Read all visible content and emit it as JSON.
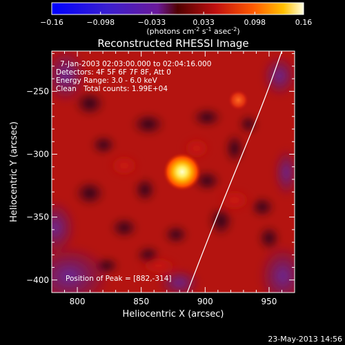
{
  "chart_data": {
    "type": "heatmap",
    "title": "Reconstructed RHESSI Image",
    "xlabel": "Heliocentric X (arcsec)",
    "ylabel": "Heliocentric Y (arcsec)",
    "xlim": [
      780,
      970
    ],
    "ylim": [
      -410,
      -218
    ],
    "xticks": [
      800,
      850,
      900,
      950
    ],
    "yticks": [
      -250,
      -300,
      -350,
      -400
    ],
    "colorbar": {
      "ticks": [
        "-0.16",
        "-0.098",
        "-0.033",
        "0.033",
        "0.098",
        "0.16"
      ],
      "range": [
        -0.16,
        0.16
      ],
      "unit_prefix": "(photons cm",
      "unit_sup1": "-2",
      "unit_mid": " s",
      "unit_sup2": "-1",
      "unit_mid2": " asec",
      "unit_sup3": "-2",
      "unit_suffix": ")"
    },
    "annotations": {
      "time_range": "7-Jan-2003 02:03:00.000 to 02:04:16.000",
      "detectors": "Detectors: 4F 5F 6F 7F 8F, Att 0",
      "energy": "Energy Range: 3.0 - 6.0 keV",
      "method": "Clean",
      "counts": "Total counts: 1.99E+04",
      "peak": "Position of Peak = [882,-314]"
    },
    "peak": {
      "x": 882,
      "y": -314,
      "value": 0.16
    },
    "secondary_sources": [
      {
        "x": 926,
        "y": -257,
        "value": 0.09
      }
    ],
    "limb_curve": [
      [
        886,
        -410
      ],
      [
        905,
        -360
      ],
      [
        925,
        -310
      ],
      [
        946,
        -258
      ],
      [
        960,
        -218
      ]
    ]
  },
  "footer": {
    "date": "23-May-2013 14:56"
  }
}
